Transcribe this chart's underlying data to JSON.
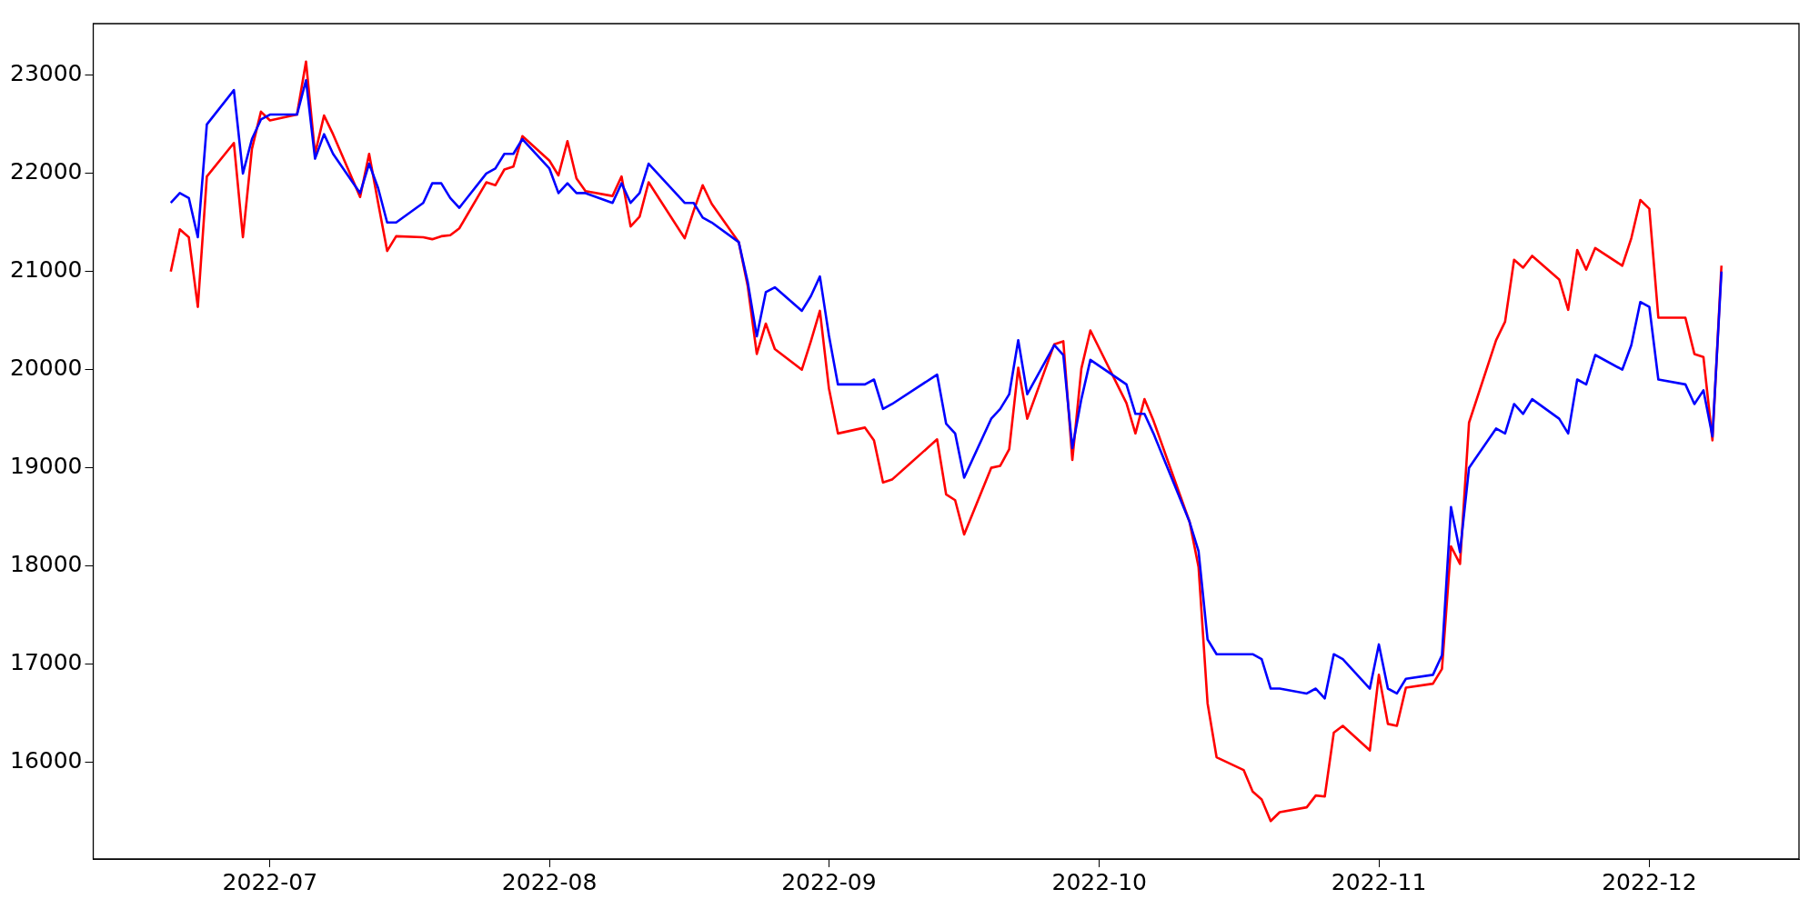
{
  "chart_data": {
    "type": "line",
    "x": [
      "2022-06-20",
      "2022-06-21",
      "2022-06-22",
      "2022-06-23",
      "2022-06-24",
      "2022-06-27",
      "2022-06-28",
      "2022-06-29",
      "2022-06-30",
      "2022-07-01",
      "2022-07-04",
      "2022-07-05",
      "2022-07-06",
      "2022-07-07",
      "2022-07-08",
      "2022-07-11",
      "2022-07-12",
      "2022-07-13",
      "2022-07-14",
      "2022-07-15",
      "2022-07-18",
      "2022-07-19",
      "2022-07-20",
      "2022-07-21",
      "2022-07-22",
      "2022-07-25",
      "2022-07-26",
      "2022-07-27",
      "2022-07-28",
      "2022-07-29",
      "2022-08-01",
      "2022-08-02",
      "2022-08-03",
      "2022-08-04",
      "2022-08-05",
      "2022-08-08",
      "2022-08-09",
      "2022-08-10",
      "2022-08-11",
      "2022-08-12",
      "2022-08-16",
      "2022-08-17",
      "2022-08-18",
      "2022-08-19",
      "2022-08-22",
      "2022-08-23",
      "2022-08-24",
      "2022-08-25",
      "2022-08-26",
      "2022-08-29",
      "2022-08-30",
      "2022-08-31",
      "2022-09-01",
      "2022-09-02",
      "2022-09-05",
      "2022-09-06",
      "2022-09-07",
      "2022-09-08",
      "2022-09-13",
      "2022-09-14",
      "2022-09-15",
      "2022-09-16",
      "2022-09-19",
      "2022-09-20",
      "2022-09-21",
      "2022-09-22",
      "2022-09-23",
      "2022-09-26",
      "2022-09-27",
      "2022-09-28",
      "2022-09-29",
      "2022-09-30",
      "2022-10-04",
      "2022-10-05",
      "2022-10-06",
      "2022-10-07",
      "2022-10-11",
      "2022-10-12",
      "2022-10-13",
      "2022-10-14",
      "2022-10-17",
      "2022-10-18",
      "2022-10-19",
      "2022-10-20",
      "2022-10-21",
      "2022-10-24",
      "2022-10-25",
      "2022-10-26",
      "2022-10-27",
      "2022-10-28",
      "2022-10-31",
      "2022-11-01",
      "2022-11-02",
      "2022-11-03",
      "2022-11-04",
      "2022-11-07",
      "2022-11-08",
      "2022-11-09",
      "2022-11-10",
      "2022-11-11",
      "2022-11-14",
      "2022-11-15",
      "2022-11-16",
      "2022-11-17",
      "2022-11-18",
      "2022-11-21",
      "2022-11-22",
      "2022-11-23",
      "2022-11-24",
      "2022-11-25",
      "2022-11-28",
      "2022-11-29",
      "2022-11-30",
      "2022-12-01",
      "2022-12-02",
      "2022-12-05",
      "2022-12-06",
      "2022-12-07",
      "2022-12-08",
      "2022-12-09"
    ],
    "series": [
      {
        "color": "#ff0000",
        "values": [
          21000,
          21430,
          21350,
          20640,
          21970,
          22310,
          21350,
          22250,
          22630,
          22540,
          22600,
          23140,
          22200,
          22590,
          22400,
          21760,
          22200,
          21700,
          21210,
          21360,
          21350,
          21330,
          21360,
          21370,
          21440,
          21910,
          21880,
          22040,
          22070,
          22380,
          22130,
          21980,
          22330,
          21950,
          21820,
          21770,
          21970,
          21460,
          21560,
          21910,
          21340,
          21620,
          21880,
          21690,
          21300,
          20850,
          20160,
          20470,
          20210,
          20000,
          20290,
          20600,
          19810,
          19350,
          19410,
          19280,
          18850,
          18880,
          19290,
          18730,
          18670,
          18320,
          19000,
          19020,
          19190,
          20020,
          19500,
          20260,
          20290,
          19080,
          20010,
          20400,
          19660,
          19350,
          19700,
          19480,
          18450,
          17990,
          16600,
          16050,
          15920,
          15700,
          15620,
          15400,
          15490,
          15540,
          15660,
          15650,
          16300,
          16370,
          16120,
          16890,
          16390,
          16370,
          16760,
          16800,
          16950,
          18200,
          18020,
          19460,
          20300,
          20490,
          21120,
          21040,
          21160,
          20920,
          20610,
          21220,
          21020,
          21240,
          21060,
          21340,
          21730,
          21640,
          20530,
          20530,
          20160,
          20130,
          19280,
          21060
        ]
      },
      {
        "color": "#0000ff",
        "values": [
          21700,
          21800,
          21750,
          21350,
          22500,
          22850,
          22000,
          22350,
          22550,
          22600,
          22600,
          22950,
          22150,
          22400,
          22200,
          21800,
          22100,
          21850,
          21500,
          21500,
          21700,
          21900,
          21900,
          21750,
          21650,
          22000,
          22050,
          22200,
          22200,
          22350,
          22050,
          21800,
          21900,
          21800,
          21800,
          21700,
          21900,
          21700,
          21800,
          22100,
          21700,
          21700,
          21550,
          21500,
          21300,
          20890,
          20340,
          20790,
          20840,
          20600,
          20750,
          20950,
          20350,
          19850,
          19850,
          19900,
          19600,
          19650,
          19950,
          19450,
          19350,
          18900,
          19500,
          19600,
          19750,
          20300,
          19750,
          20250,
          20150,
          19200,
          19700,
          20100,
          19850,
          19550,
          19550,
          19350,
          18450,
          18150,
          17250,
          17100,
          17100,
          17100,
          17050,
          16750,
          16750,
          16700,
          16750,
          16650,
          17100,
          17050,
          16750,
          17200,
          16750,
          16700,
          16850,
          16890,
          17090,
          18600,
          18140,
          19000,
          19400,
          19350,
          19650,
          19550,
          19700,
          19500,
          19350,
          19900,
          19850,
          20150,
          20000,
          20250,
          20690,
          20640,
          19900,
          19850,
          19650,
          19790,
          19320,
          21000
        ]
      }
    ],
    "xlim": [
      "2022-06-11T09:36",
      "2022-12-17T14:24"
    ],
    "xticks": [
      {
        "value": "2022-07-01",
        "label": "2022-07"
      },
      {
        "value": "2022-08-01",
        "label": "2022-08"
      },
      {
        "value": "2022-09-01",
        "label": "2022-09"
      },
      {
        "value": "2022-10-01",
        "label": "2022-10"
      },
      {
        "value": "2022-11-01",
        "label": "2022-11"
      },
      {
        "value": "2022-12-01",
        "label": "2022-12"
      }
    ],
    "ylim": [
      15013,
      23527
    ],
    "yticks": [
      16000,
      17000,
      18000,
      19000,
      20000,
      21000,
      22000,
      23000
    ],
    "legend": false,
    "grid": false
  }
}
